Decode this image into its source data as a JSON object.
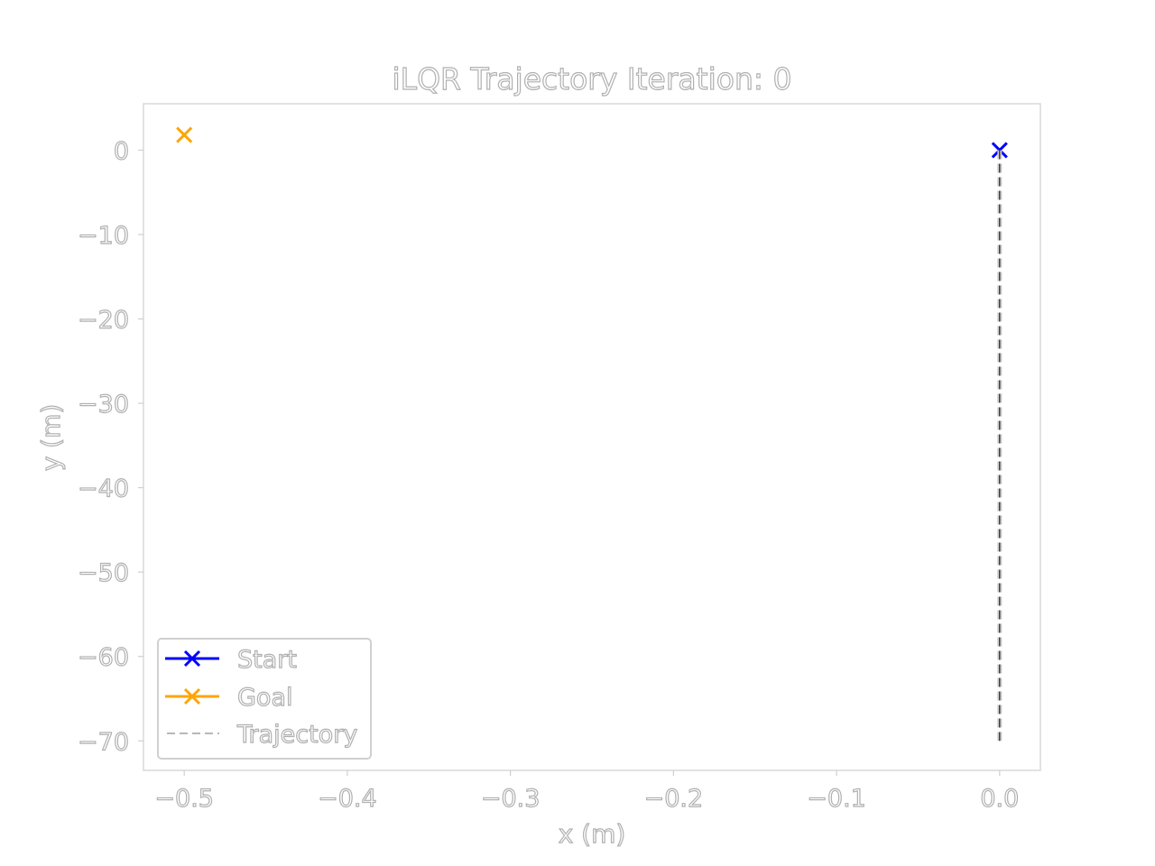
{
  "chart_data": {
    "type": "line",
    "title": "iLQR Trajectory Iteration: 0",
    "xlabel": "x (m)",
    "ylabel": "y (m)",
    "xlim": [
      -0.525,
      0.025
    ],
    "ylim": [
      -73.5,
      5.5
    ],
    "x_ticks": [
      -0.5,
      -0.4,
      -0.3,
      -0.2,
      -0.1,
      0.0
    ],
    "x_tick_labels": [
      "−0.5",
      "−0.4",
      "−0.3",
      "−0.2",
      "−0.1",
      "0.0"
    ],
    "y_ticks": [
      0,
      -10,
      -20,
      -30,
      -40,
      -50,
      -60,
      -70
    ],
    "y_tick_labels": [
      "0",
      "−10",
      "−20",
      "−30",
      "−40",
      "−50",
      "−60",
      "−70"
    ],
    "grid": false,
    "legend_position": "lower-left",
    "series": [
      {
        "name": "Start",
        "marker": "x",
        "color": "#0000ff",
        "x": [
          0.0
        ],
        "y": [
          0.0
        ]
      },
      {
        "name": "Goal",
        "marker": "x",
        "color": "#ffa500",
        "x": [
          -0.5
        ],
        "y": [
          1.8
        ]
      },
      {
        "name": "Trajectory",
        "style": "dashed",
        "color": "#000000",
        "x": [
          0.0,
          0.0
        ],
        "y": [
          0.0,
          -70.0
        ]
      }
    ]
  }
}
